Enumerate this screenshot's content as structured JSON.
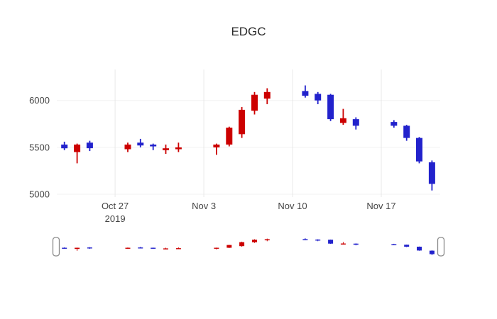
{
  "chart_data": {
    "type": "candlestick",
    "title": "EDGC",
    "legend": "none",
    "grid": "on",
    "colors": {
      "increasing": "#cc0000",
      "decreasing": "#2222cc"
    },
    "axis_color": "#444444",
    "grid_color": "#e8e8e8",
    "minor_grid_color": "#f2f2f2",
    "y_ticks": [
      5000,
      5500,
      6000
    ],
    "y_range": [
      4970,
      6330
    ],
    "x_range_days": [
      -0.6,
      29.65
    ],
    "x_ticks": [
      {
        "label": "Oct 27",
        "sublabel": "2019",
        "day": 4
      },
      {
        "label": "Nov 3",
        "day": 11
      },
      {
        "label": "Nov 10",
        "day": 18
      },
      {
        "label": "Nov 17",
        "day": 25
      }
    ],
    "rangeslider": {
      "visible": true,
      "handle_color": "#8a8a8a"
    },
    "candles": [
      {
        "date": "Oct 23",
        "day": 0,
        "open": 5530,
        "high": 5560,
        "low": 5470,
        "close": 5490
      },
      {
        "date": "Oct 24",
        "day": 1,
        "open": 5450,
        "high": 5540,
        "low": 5330,
        "close": 5530
      },
      {
        "date": "Oct 25",
        "day": 2,
        "open": 5550,
        "high": 5570,
        "low": 5460,
        "close": 5490
      },
      {
        "date": "Oct 28",
        "day": 5,
        "open": 5480,
        "high": 5550,
        "low": 5450,
        "close": 5530
      },
      {
        "date": "Oct 29",
        "day": 6,
        "open": 5550,
        "high": 5590,
        "low": 5500,
        "close": 5520
      },
      {
        "date": "Oct 30",
        "day": 7,
        "open": 5530,
        "high": 5540,
        "low": 5470,
        "close": 5510
      },
      {
        "date": "Oct 31",
        "day": 8,
        "open": 5470,
        "high": 5530,
        "low": 5430,
        "close": 5490
      },
      {
        "date": "Nov 1",
        "day": 9,
        "open": 5480,
        "high": 5550,
        "low": 5450,
        "close": 5500
      },
      {
        "date": "Nov 4",
        "day": 12,
        "open": 5500,
        "high": 5540,
        "low": 5420,
        "close": 5530
      },
      {
        "date": "Nov 5",
        "day": 13,
        "open": 5530,
        "high": 5720,
        "low": 5510,
        "close": 5710
      },
      {
        "date": "Nov 6",
        "day": 14,
        "open": 5640,
        "high": 5930,
        "low": 5600,
        "close": 5900
      },
      {
        "date": "Nov 7",
        "day": 15,
        "open": 5890,
        "high": 6090,
        "low": 5850,
        "close": 6060
      },
      {
        "date": "Nov 8",
        "day": 16,
        "open": 6020,
        "high": 6130,
        "low": 5960,
        "close": 6090
      },
      {
        "date": "Nov 11",
        "day": 19,
        "open": 6100,
        "high": 6160,
        "low": 6030,
        "close": 6050
      },
      {
        "date": "Nov 12",
        "day": 20,
        "open": 6070,
        "high": 6090,
        "low": 5960,
        "close": 6000
      },
      {
        "date": "Nov 13",
        "day": 21,
        "open": 6060,
        "high": 6070,
        "low": 5780,
        "close": 5800
      },
      {
        "date": "Nov 14",
        "day": 22,
        "open": 5760,
        "high": 5910,
        "low": 5740,
        "close": 5810
      },
      {
        "date": "Nov 15",
        "day": 23,
        "open": 5800,
        "high": 5820,
        "low": 5690,
        "close": 5730
      },
      {
        "date": "Nov 18",
        "day": 26,
        "open": 5770,
        "high": 5790,
        "low": 5710,
        "close": 5730
      },
      {
        "date": "Nov 19",
        "day": 27,
        "open": 5730,
        "high": 5740,
        "low": 5570,
        "close": 5600
      },
      {
        "date": "Nov 20",
        "day": 28,
        "open": 5600,
        "high": 5610,
        "low": 5330,
        "close": 5350
      },
      {
        "date": "Nov 21",
        "day": 29,
        "open": 5340,
        "high": 5360,
        "low": 5040,
        "close": 5110
      }
    ]
  }
}
